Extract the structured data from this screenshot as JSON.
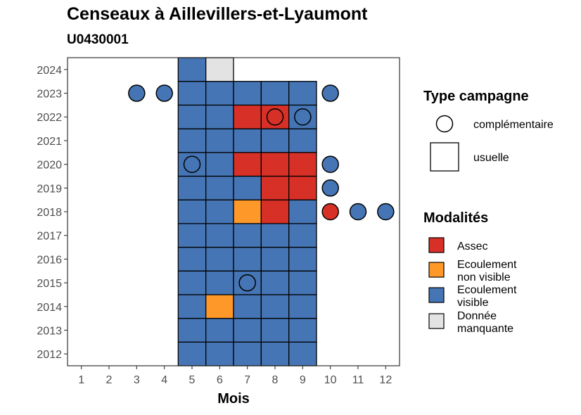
{
  "chart_data": {
    "type": "heatmap",
    "title": "Censeaux à Aillevillers-et-Lyaumont",
    "subtitle": "U0430001",
    "xlabel": "Mois",
    "ylabel": "",
    "x_ticks": [
      1,
      2,
      3,
      4,
      5,
      6,
      7,
      8,
      9,
      10,
      11,
      12
    ],
    "y_ticks": [
      2012,
      2013,
      2014,
      2015,
      2016,
      2017,
      2018,
      2019,
      2020,
      2021,
      2022,
      2023,
      2024
    ],
    "xlim": [
      0.5,
      12.5
    ],
    "ylim": [
      2011.5,
      2024.5
    ],
    "colors": {
      "Assec": "#d73027",
      "Ecoulement non visible": "#fe9929",
      "Ecoulement visible": "#4575b4",
      "Donnée manquante": "#e3e3e3"
    },
    "usuelle": [
      {
        "year": 2012,
        "cells": [
          "Ecoulement visible",
          "Ecoulement visible",
          "Ecoulement visible",
          "Ecoulement visible",
          "Ecoulement visible"
        ]
      },
      {
        "year": 2013,
        "cells": [
          "Ecoulement visible",
          "Ecoulement visible",
          "Ecoulement visible",
          "Ecoulement visible",
          "Ecoulement visible"
        ]
      },
      {
        "year": 2014,
        "cells": [
          "Ecoulement visible",
          "Ecoulement non visible",
          "Ecoulement visible",
          "Ecoulement visible",
          "Ecoulement visible"
        ]
      },
      {
        "year": 2015,
        "cells": [
          "Ecoulement visible",
          "Ecoulement visible",
          "Ecoulement visible",
          "Ecoulement visible",
          "Ecoulement visible"
        ]
      },
      {
        "year": 2016,
        "cells": [
          "Ecoulement visible",
          "Ecoulement visible",
          "Ecoulement visible",
          "Ecoulement visible",
          "Ecoulement visible"
        ]
      },
      {
        "year": 2017,
        "cells": [
          "Ecoulement visible",
          "Ecoulement visible",
          "Ecoulement visible",
          "Ecoulement visible",
          "Ecoulement visible"
        ]
      },
      {
        "year": 2018,
        "cells": [
          "Ecoulement visible",
          "Ecoulement visible",
          "Ecoulement non visible",
          "Assec",
          "Ecoulement visible"
        ]
      },
      {
        "year": 2019,
        "cells": [
          "Ecoulement visible",
          "Ecoulement visible",
          "Ecoulement visible",
          "Assec",
          "Assec"
        ]
      },
      {
        "year": 2020,
        "cells": [
          "Ecoulement visible",
          "Ecoulement visible",
          "Assec",
          "Assec",
          "Assec"
        ]
      },
      {
        "year": 2021,
        "cells": [
          "Ecoulement visible",
          "Ecoulement visible",
          "Ecoulement visible",
          "Ecoulement visible",
          "Ecoulement visible"
        ]
      },
      {
        "year": 2022,
        "cells": [
          "Ecoulement visible",
          "Ecoulement visible",
          "Assec",
          "Assec",
          "Ecoulement visible"
        ]
      },
      {
        "year": 2023,
        "cells": [
          "Ecoulement visible",
          "Ecoulement visible",
          "Ecoulement visible",
          "Ecoulement visible",
          "Ecoulement visible"
        ]
      },
      {
        "year": 2024,
        "cells": [
          "Ecoulement visible",
          "Donnée manquante",
          null,
          null,
          null
        ]
      }
    ],
    "usuelle_start_month": 5,
    "complementaire": [
      {
        "year": 2023,
        "month": 3,
        "modalite": "Ecoulement visible"
      },
      {
        "year": 2023,
        "month": 4,
        "modalite": "Ecoulement visible"
      },
      {
        "year": 2023,
        "month": 10,
        "modalite": "Ecoulement visible"
      },
      {
        "year": 2022,
        "month": 8,
        "modalite": "Assec"
      },
      {
        "year": 2022,
        "month": 9,
        "modalite": "Ecoulement visible"
      },
      {
        "year": 2020,
        "month": 5,
        "modalite": "Ecoulement visible"
      },
      {
        "year": 2020,
        "month": 10,
        "modalite": "Ecoulement visible"
      },
      {
        "year": 2019,
        "month": 10,
        "modalite": "Ecoulement visible"
      },
      {
        "year": 2018,
        "month": 10,
        "modalite": "Assec"
      },
      {
        "year": 2018,
        "month": 11,
        "modalite": "Ecoulement visible"
      },
      {
        "year": 2018,
        "month": 12,
        "modalite": "Ecoulement visible"
      },
      {
        "year": 2015,
        "month": 7,
        "modalite": "Ecoulement visible"
      }
    ],
    "legend_type": {
      "title": "Type campagne",
      "items": [
        "complémentaire",
        "usuelle"
      ]
    },
    "legend_modalites": {
      "title": "Modalités",
      "items": [
        {
          "label": [
            "Assec"
          ],
          "key": "Assec"
        },
        {
          "label": [
            "Ecoulement",
            "non visible"
          ],
          "key": "Ecoulement non visible"
        },
        {
          "label": [
            "Ecoulement",
            "visible"
          ],
          "key": "Ecoulement visible"
        },
        {
          "label": [
            "Donnée",
            "manquante"
          ],
          "key": "Donnée manquante"
        }
      ]
    },
    "legend_position": "right"
  }
}
